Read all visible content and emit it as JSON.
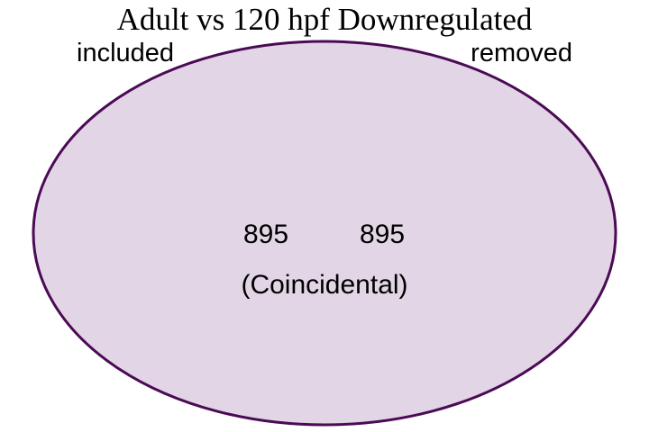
{
  "title": "Adult vs 120 hpf Downregulated",
  "sets": [
    {
      "label": "included",
      "count": "895"
    },
    {
      "label": "removed",
      "count": "895"
    }
  ],
  "relationship_note": "(Coincidental)",
  "colors": {
    "fill": "#e2d5e5",
    "stroke": "#4b0a55",
    "text": "#000000"
  }
}
